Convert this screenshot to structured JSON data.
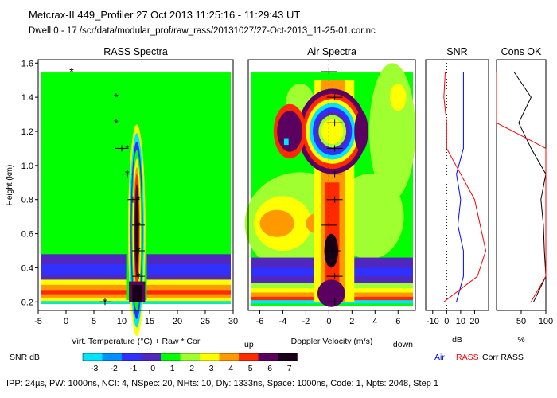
{
  "header": {
    "line1": "Metcrax-II  449_Profiler  27 Oct 2013  11:25:16 - 11:29:43 UT",
    "line2": "Dwell  0 - 17   /scr/data/modular_prof/raw_rass/20131027/27-Oct-2013_11-25-01.cor.nc"
  },
  "footer": "IPP: 24µs, PW: 1000ns, NCI: 4, NSpec: 20, NHts: 10, Dly: 1333ns, Space: 1000ns, Code: 1, Npts: 2048, Step 1",
  "colors": {
    "bg": "#00ff00",
    "scale": [
      "#00e5ff",
      "#0090ff",
      "#3030ff",
      "#5028c0",
      "#00ff00",
      "#a0ff30",
      "#ffff00",
      "#ff9900",
      "#ff2a00",
      "#5a0060",
      "#180018"
    ],
    "air_line": "#0000ff",
    "rass_line": "#ff0000",
    "corr_line": "#000000"
  },
  "chart_data": [
    {
      "type": "heatmap",
      "title": "RASS Spectra",
      "ylabel": "Height (km)",
      "xlabel": "Virt. Temperature (°C)  + Raw  * Cor",
      "xlim": [
        -5,
        30
      ],
      "ylim": [
        0.15,
        1.62
      ],
      "xticks": [
        "-5",
        "0",
        "5",
        "10",
        "15",
        "20",
        "25",
        "30"
      ],
      "yticks": [
        "0.2",
        "0.4",
        "0.6",
        "0.8",
        "1.0",
        "1.2",
        "1.4",
        "1.6"
      ],
      "yticks_values": [
        0.2,
        0.4,
        0.6,
        0.8,
        1.0,
        1.2,
        1.4,
        1.6
      ],
      "raw_points": [
        {
          "x": 7,
          "y": 0.2
        },
        {
          "x": 13,
          "y": 0.35
        },
        {
          "x": 13,
          "y": 0.5
        },
        {
          "x": 13,
          "y": 0.65
        },
        {
          "x": 12,
          "y": 0.8
        },
        {
          "x": 11,
          "y": 0.95
        },
        {
          "x": 10,
          "y": 1.1
        }
      ],
      "cor_points": [
        {
          "x": 7,
          "y": 0.2
        },
        {
          "x": 13,
          "y": 0.35
        },
        {
          "x": 13,
          "y": 0.5
        },
        {
          "x": 13,
          "y": 0.65
        },
        {
          "x": 13,
          "y": 0.8
        },
        {
          "x": 11,
          "y": 0.95
        },
        {
          "x": 11,
          "y": 1.1
        },
        {
          "x": 9,
          "y": 1.25
        },
        {
          "x": 9,
          "y": 1.4
        },
        {
          "x": 1,
          "y": 1.55
        }
      ]
    },
    {
      "type": "heatmap",
      "title": "Air Spectra",
      "xlabel": "Doppler Velocity (m/s)",
      "xlabel_left": "up",
      "xlabel_right": "down",
      "xlim": [
        -7,
        7.5
      ],
      "ylim": [
        0.15,
        1.62
      ],
      "xticks": [
        "-6",
        "-4",
        "-2",
        "0",
        "2",
        "4",
        "6"
      ],
      "xticks_values": [
        -6,
        -4,
        -2,
        0,
        2,
        4,
        6
      ],
      "points": [
        {
          "x": 0.5,
          "y": 0.2
        },
        {
          "x": 0.5,
          "y": 0.35
        },
        {
          "x": 0.3,
          "y": 0.5
        },
        {
          "x": 0,
          "y": 0.65
        },
        {
          "x": 0.5,
          "y": 0.8
        },
        {
          "x": 0.5,
          "y": 0.95
        },
        {
          "x": 0.5,
          "y": 1.1
        },
        {
          "x": 0.5,
          "y": 1.25
        },
        {
          "x": 0.5,
          "y": 1.4
        },
        {
          "x": 0,
          "y": 1.55
        }
      ]
    },
    {
      "type": "line",
      "title": "SNR",
      "xlabel": "dB",
      "xlim": [
        -15,
        30
      ],
      "ylim": [
        0.15,
        1.62
      ],
      "xticks": [
        "-10",
        "0",
        "10",
        "20"
      ],
      "xticks_values": [
        -10,
        0,
        10,
        20
      ],
      "series": [
        {
          "name": "Air",
          "x": [
            7,
            12,
            12,
            8,
            10,
            7,
            12,
            12,
            12,
            12
          ],
          "y": [
            0.2,
            0.35,
            0.5,
            0.65,
            0.8,
            0.95,
            1.1,
            1.25,
            1.4,
            1.55
          ]
        },
        {
          "name": "RASS",
          "x": [
            -2,
            22,
            28,
            24,
            20,
            10,
            0,
            0,
            -2,
            -1
          ],
          "y": [
            0.2,
            0.35,
            0.5,
            0.65,
            0.8,
            0.95,
            1.1,
            1.25,
            1.4,
            1.55
          ]
        }
      ]
    },
    {
      "type": "line",
      "title": "Cons OK",
      "xlabel": "%",
      "xlim": [
        0,
        100
      ],
      "ylim": [
        0.15,
        1.62
      ],
      "xticks": [
        "50",
        "100"
      ],
      "xticks_values": [
        50,
        100
      ],
      "series": [
        {
          "name": "Corr",
          "x": [
            75,
            100,
            97,
            95,
            90,
            100,
            70,
            45,
            70,
            35
          ],
          "y": [
            0.2,
            0.35,
            0.5,
            0.65,
            0.8,
            0.95,
            1.1,
            1.25,
            1.4,
            1.55
          ]
        },
        {
          "name": "RASS",
          "x": [
            70,
            100,
            100,
            100,
            100,
            100,
            100,
            0,
            0,
            0
          ],
          "y": [
            0.2,
            0.35,
            0.5,
            0.65,
            0.8,
            0.95,
            1.1,
            1.25,
            1.4,
            1.55
          ]
        }
      ]
    },
    {
      "type": "colorbar",
      "label": "SNR dB",
      "ticks": [
        "-3",
        "-2",
        "-1",
        "0",
        "1",
        "2",
        "3",
        "4",
        "5",
        "6",
        "7"
      ]
    }
  ],
  "legend": {
    "air": "Air",
    "rass": "RASS",
    "corr": "Corr RASS"
  }
}
